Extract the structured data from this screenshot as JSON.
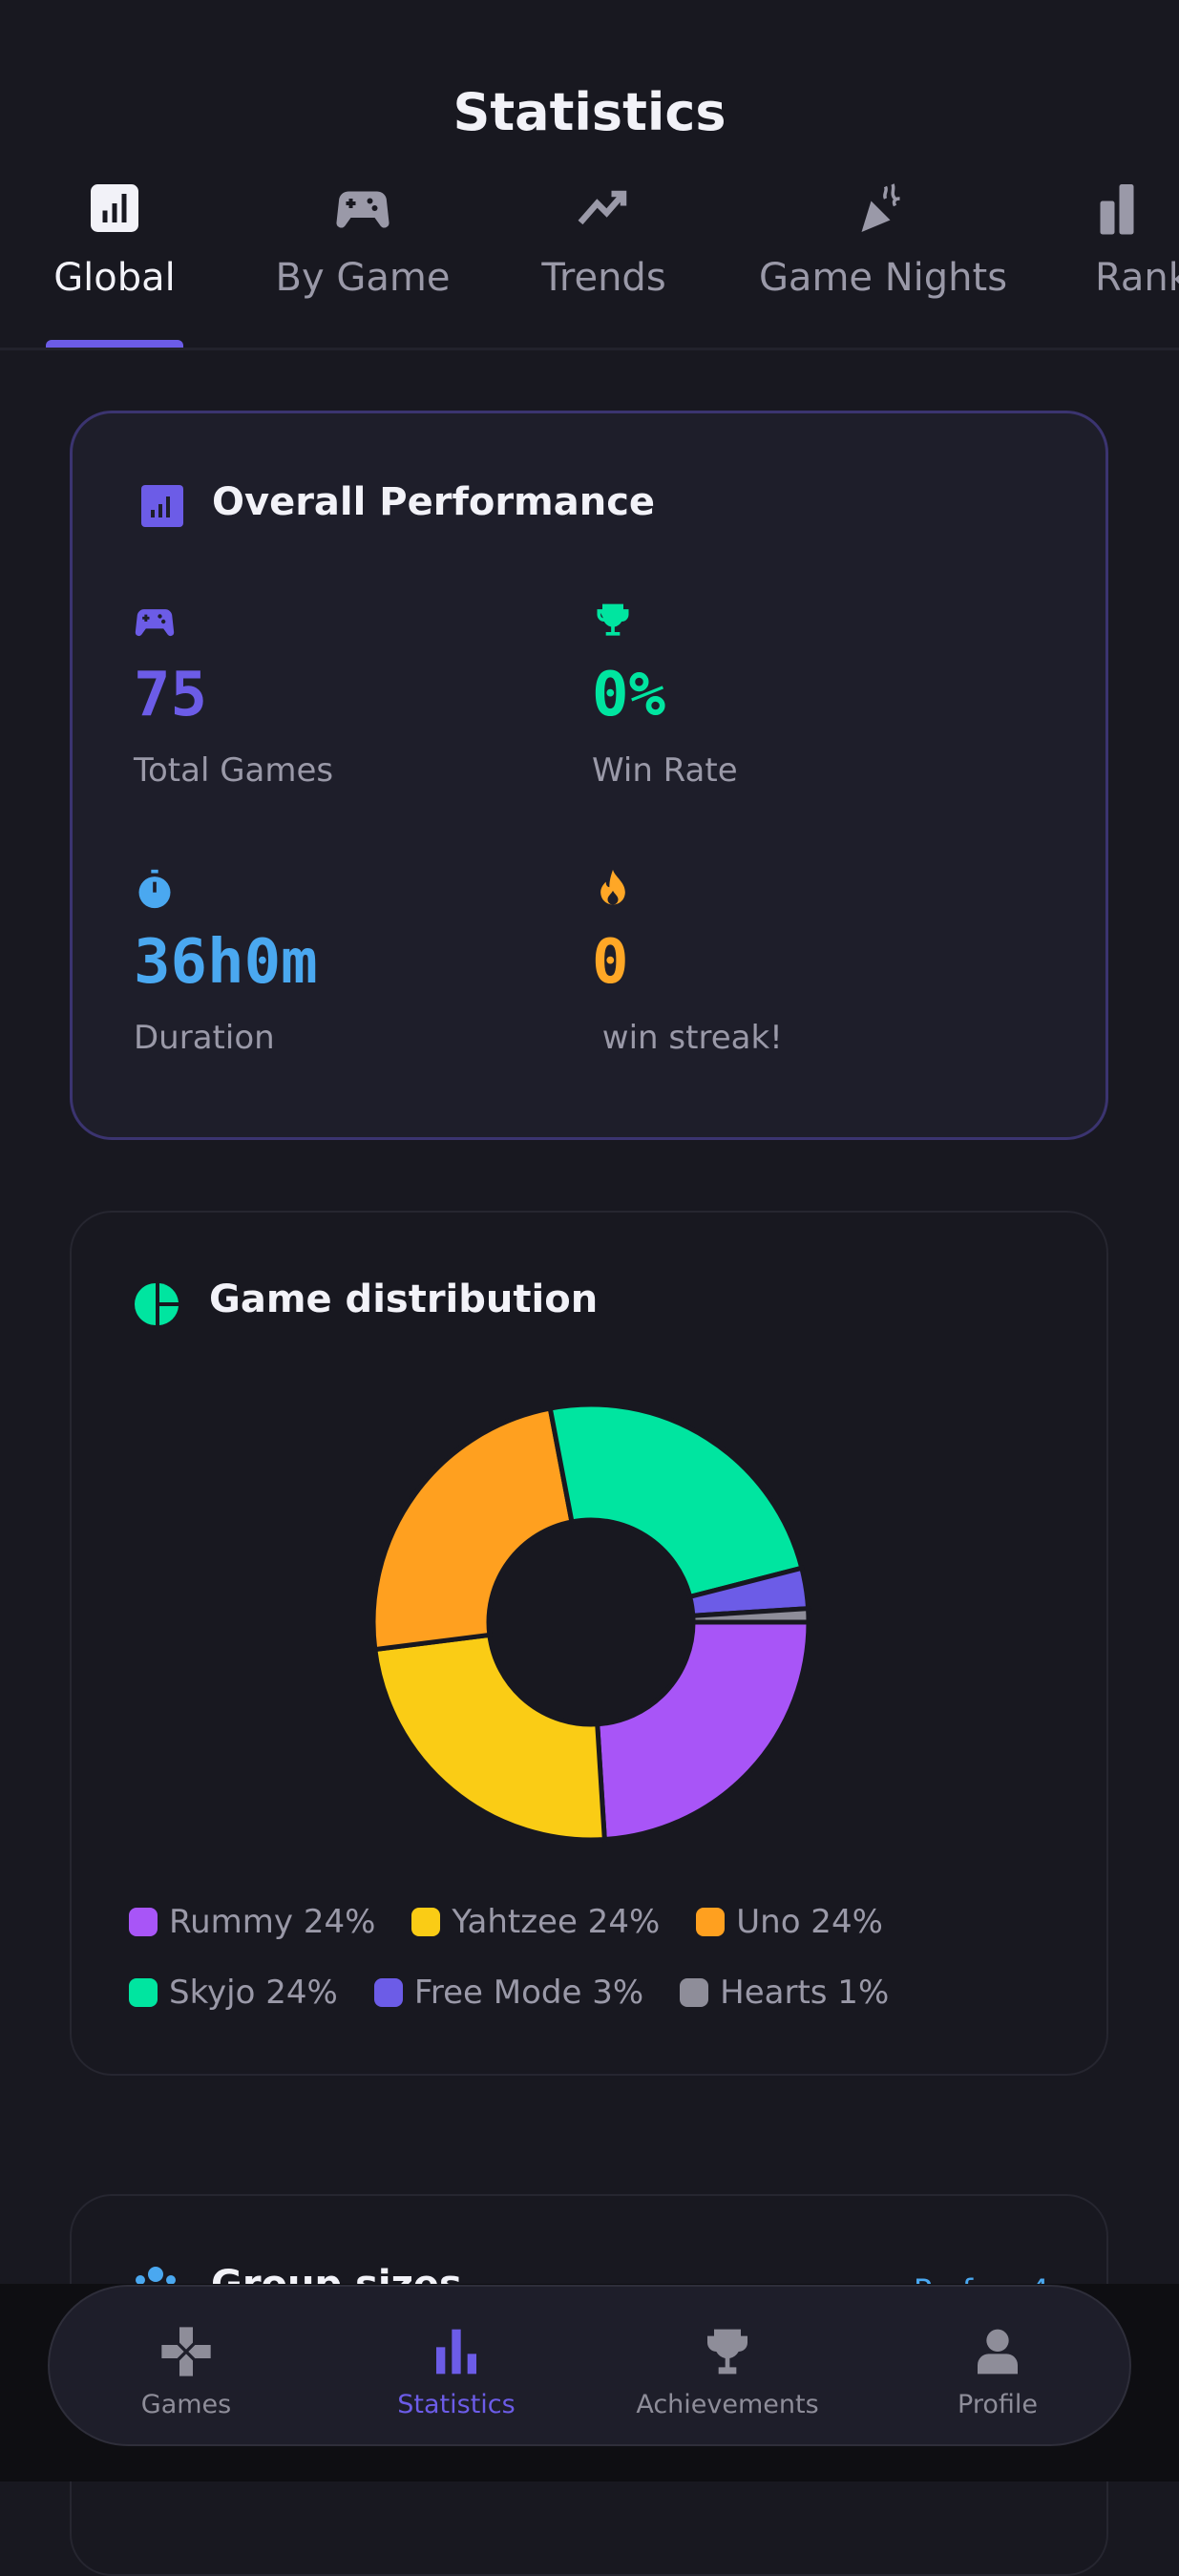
{
  "header": {
    "title": "Statistics"
  },
  "tabs": [
    {
      "label": "Global",
      "icon": "bar-chart-box-icon",
      "active": true
    },
    {
      "label": "By Game",
      "icon": "gamepad-icon"
    },
    {
      "label": "Trends",
      "icon": "trending-up-icon"
    },
    {
      "label": "Game Nights",
      "icon": "party-popper-icon"
    },
    {
      "label": "Rank",
      "icon": "podium-icon"
    }
  ],
  "overall": {
    "title": "Overall Performance",
    "stats": [
      {
        "value": "75",
        "label": "Total Games",
        "icon": "gamepad-icon",
        "color": "#6c5ce7"
      },
      {
        "value": "0%",
        "label": "Win Rate",
        "icon": "trophy-icon",
        "color": "#00e5a0"
      },
      {
        "value": "36h0m",
        "label": "Duration",
        "icon": "stopwatch-icon",
        "color": "#4aa8f0"
      },
      {
        "value": "0",
        "label": " win streak!",
        "icon": "fire-icon",
        "color": "#ffa726"
      }
    ]
  },
  "distribution": {
    "title": "Game distribution",
    "legend": [
      "Rummy 24%",
      "Yahtzee 24%",
      "Uno 24%",
      "Skyjo 24%",
      "Free Mode 3%",
      "Hearts 1%"
    ]
  },
  "chart_data": {
    "type": "pie",
    "donut": true,
    "categories": [
      "Rummy",
      "Yahtzee",
      "Uno",
      "Skyjo",
      "Free Mode",
      "Hearts"
    ],
    "values": [
      24,
      24,
      24,
      24,
      3,
      1
    ],
    "colors": [
      "#a855f7",
      "#facc15",
      "#ffa01f",
      "#00e5a0",
      "#6c5ce7",
      "#8e8d99"
    ],
    "legend": "bottom"
  },
  "group_sizes": {
    "title": "Group sizes",
    "summary": "Prefers 4"
  },
  "nav": [
    {
      "label": "Games",
      "icon": "gamepad-cross-icon"
    },
    {
      "label": "Statistics",
      "icon": "bar-chart-icon",
      "active": true
    },
    {
      "label": "Achievements",
      "icon": "trophy-icon"
    },
    {
      "label": "Profile",
      "icon": "person-icon"
    }
  ]
}
